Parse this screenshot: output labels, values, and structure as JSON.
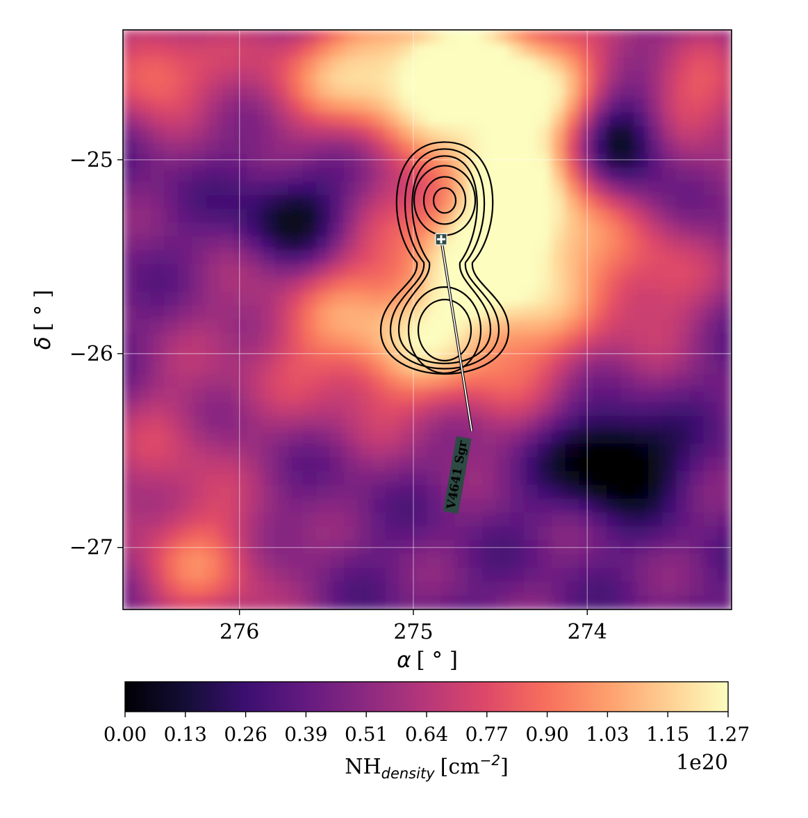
{
  "chart_data": {
    "type": "heatmap",
    "title": "",
    "xlabel_symbol": "α",
    "xlabel_unit": "[ ° ]",
    "ylabel_symbol": "δ",
    "ylabel_unit": "[ ° ]",
    "x_direction": "reversed",
    "xlim": [
      276.67,
      273.17
    ],
    "ylim": [
      -27.32,
      -24.33
    ],
    "x_ticks": [
      276,
      275,
      274
    ],
    "x_tick_labels": [
      "276",
      "275",
      "274"
    ],
    "y_ticks": [
      -25,
      -26,
      -27
    ],
    "y_tick_labels": [
      "−25",
      "−26",
      "−27"
    ],
    "grid": true,
    "colormap": "magma",
    "colorbar": {
      "label_main": "NH",
      "label_sub": "density",
      "label_unit": "[cm",
      "label_exp": "−2",
      "label_close": "]",
      "multiplier": "1e20",
      "min": 0.0,
      "max": 1.27,
      "tick_labels": [
        "0.00",
        "0.13",
        "0.26",
        "0.39",
        "0.51",
        "0.64",
        "0.77",
        "0.90",
        "1.03",
        "1.15",
        "1.27"
      ]
    },
    "source": {
      "name": "V4641 Sgr",
      "ra": 274.84,
      "dec": -25.41,
      "label_ra": 274.76,
      "label_dec": -26.83
    },
    "contours": {
      "color": "#000000",
      "centers": [
        {
          "ra": 274.82,
          "dec": -25.21
        },
        {
          "ra": 274.82,
          "dec": -25.85
        }
      ]
    },
    "density_features": [
      {
        "ra": 274.45,
        "dec": -25.4,
        "ra_width": 0.55,
        "dec_width": 0.45,
        "amp": 0.55
      },
      {
        "ra": 274.9,
        "dec": -24.55,
        "ra_width": 0.9,
        "dec_width": 0.35,
        "amp": 0.75
      },
      {
        "ra": 275.0,
        "dec": -25.9,
        "ra_width": 0.9,
        "dec_width": 0.45,
        "amp": 0.55
      },
      {
        "ra": 274.4,
        "dec": -25.0,
        "ra_width": 0.45,
        "dec_width": 0.55,
        "amp": 0.4
      },
      {
        "ra": 275.7,
        "dec": -25.3,
        "ra_width": 0.3,
        "dec_width": 0.25,
        "amp": -0.3
      },
      {
        "ra": 273.8,
        "dec": -24.9,
        "ra_width": 0.25,
        "dec_width": 0.25,
        "amp": -0.45
      },
      {
        "ra": 273.85,
        "dec": -26.55,
        "ra_width": 0.35,
        "dec_width": 0.25,
        "amp": -0.45
      },
      {
        "ra": 276.2,
        "dec": -27.1,
        "ra_width": 0.45,
        "dec_width": 0.35,
        "amp": 0.35
      },
      {
        "ra": 276.5,
        "dec": -24.55,
        "ra_width": 0.3,
        "dec_width": 0.25,
        "amp": 0.4
      },
      {
        "ra": 276.4,
        "dec": -26.5,
        "ra_width": 0.4,
        "dec_width": 0.4,
        "amp": 0.2
      },
      {
        "ra": 273.3,
        "dec": -24.7,
        "ra_width": 0.35,
        "dec_width": 0.3,
        "amp": 0.3
      },
      {
        "ra": 273.6,
        "dec": -25.6,
        "ra_width": 0.35,
        "dec_width": 0.35,
        "amp": 0.25
      }
    ],
    "density_base": 0.32
  }
}
